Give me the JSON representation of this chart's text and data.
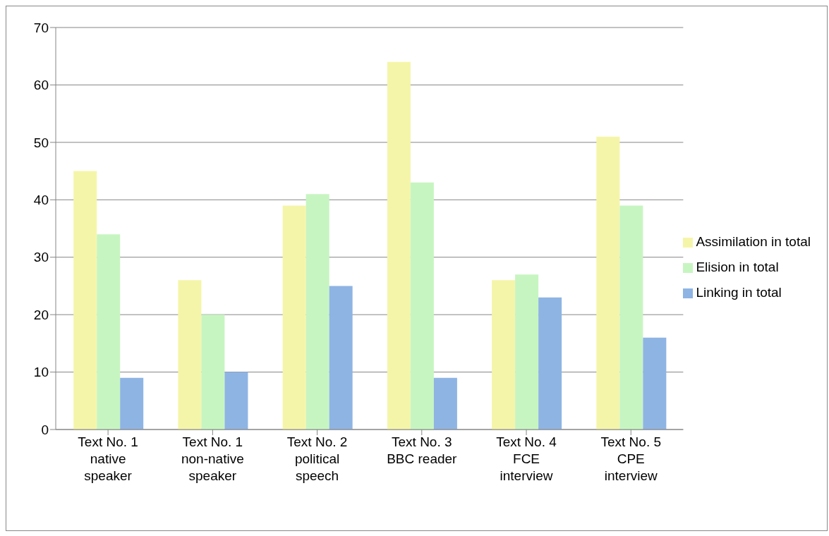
{
  "chart_data": {
    "type": "bar",
    "categories": [
      "Text No. 1 native speaker",
      "Text No. 1 non-native speaker",
      "Text No. 2 political speech",
      "Text No. 3 BBC reader",
      "Text No. 4 FCE interview",
      "Text No. 5 CPE interview"
    ],
    "series": [
      {
        "name": "Assimilation in total",
        "color": "#f5f5a9",
        "values": [
          45,
          26,
          39,
          64,
          26,
          51
        ]
      },
      {
        "name": "Elision in total",
        "color": "#c7f5c1",
        "values": [
          34,
          20,
          41,
          43,
          27,
          39
        ]
      },
      {
        "name": "Linking in total",
        "color": "#8eb4e3",
        "values": [
          9,
          10,
          25,
          9,
          23,
          16
        ]
      }
    ],
    "ylim": [
      0,
      70
    ],
    "yticks": [
      0,
      10,
      20,
      30,
      40,
      50,
      60,
      70
    ],
    "grid": "y",
    "legend": "right"
  }
}
